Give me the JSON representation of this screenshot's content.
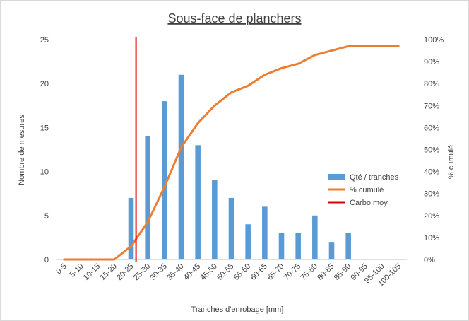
{
  "chart_data": {
    "type": "bar",
    "title": "Sous-face de planchers",
    "xlabel": "Tranches d'enrobage [mm]",
    "ylabel": "Nombre de mesures",
    "y2label": "% cumulé",
    "categories": [
      "0-5",
      "5-10",
      "10-15",
      "15-20",
      "20-25",
      "25-30",
      "30-35",
      "35-40",
      "40-45",
      "45-50",
      "50-55",
      "55-60",
      "60-65",
      "65-70",
      "70-75",
      "75-80",
      "80-85",
      "85-90",
      "90-95",
      "95-100",
      "100-105"
    ],
    "ylim": [
      0,
      25
    ],
    "yticks": [
      "0",
      "5",
      "10",
      "15",
      "20",
      "25"
    ],
    "y2lim": [
      0,
      1
    ],
    "y2ticks": [
      "0%",
      "10%",
      "20%",
      "30%",
      "40%",
      "50%",
      "60%",
      "70%",
      "80%",
      "90%",
      "100%"
    ],
    "grid": false,
    "legend_position": "right",
    "series": [
      {
        "name": "Qté / tranches",
        "type": "bar",
        "axis": "left",
        "color": "#5b9bd5",
        "values": [
          0,
          0,
          0,
          0,
          7,
          14,
          18,
          21,
          13,
          9,
          7,
          4,
          6,
          3,
          3,
          5,
          2,
          3,
          0,
          0,
          0
        ]
      },
      {
        "name": "% cumulé",
        "type": "line",
        "axis": "right",
        "color": "#ed7d31",
        "values": [
          0,
          0,
          0,
          0,
          0.06,
          0.17,
          0.33,
          0.51,
          0.62,
          0.7,
          0.76,
          0.79,
          0.84,
          0.87,
          0.89,
          0.93,
          0.95,
          0.97,
          0.97,
          0.97,
          0.97
        ]
      },
      {
        "name": "Carbo moy.",
        "type": "vline",
        "color": "#e00000",
        "x_category_position": 4.8
      }
    ]
  }
}
